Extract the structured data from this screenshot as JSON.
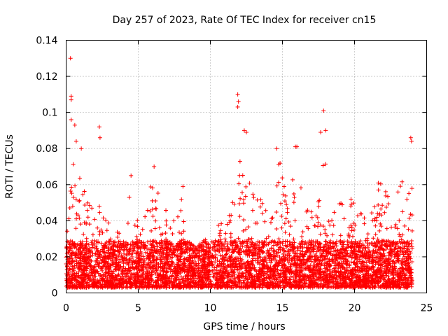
{
  "chart_data": {
    "type": "scatter",
    "title": "Day 257 of 2023, Rate Of TEC Index for receiver cn15",
    "xlabel": "GPS time / hours",
    "ylabel": "ROTI / TECUs",
    "xlim": [
      0,
      25
    ],
    "ylim": [
      0,
      0.14
    ],
    "x_ticks": [
      0,
      5,
      10,
      15,
      20,
      25
    ],
    "y_ticks": [
      0,
      0.02,
      0.04,
      0.06,
      0.08,
      0.1,
      0.12,
      0.14
    ],
    "x_tick_labels": [
      "0",
      "5",
      "10",
      "15",
      "20",
      "25"
    ],
    "y_tick_labels": [
      "0",
      "0.02",
      "0.04",
      "0.06",
      "0.08",
      "0.1",
      "0.12",
      "0.14"
    ],
    "grid": true,
    "marker": "+",
    "color": "#ff0000",
    "series": [
      {
        "name": "ROTI",
        "notable_points": [
          [
            0.3,
            0.13
          ],
          [
            0.35,
            0.109
          ],
          [
            0.35,
            0.107
          ],
          [
            0.35,
            0.096
          ],
          [
            0.6,
            0.093
          ],
          [
            0.7,
            0.084
          ],
          [
            1.05,
            0.08
          ],
          [
            2.3,
            0.092
          ],
          [
            2.35,
            0.086
          ],
          [
            4.5,
            0.065
          ],
          [
            6.1,
            0.07
          ],
          [
            8.1,
            0.059
          ],
          [
            11.9,
            0.11
          ],
          [
            11.95,
            0.106
          ],
          [
            11.9,
            0.103
          ],
          [
            12.35,
            0.09
          ],
          [
            12.5,
            0.089
          ],
          [
            14.6,
            0.08
          ],
          [
            15.9,
            0.081
          ],
          [
            16.0,
            0.081
          ],
          [
            17.85,
            0.101
          ],
          [
            17.65,
            0.089
          ],
          [
            18.0,
            0.09
          ],
          [
            23.9,
            0.086
          ],
          [
            23.95,
            0.084
          ]
        ],
        "envelope": [
          [
            0.0,
            0.03
          ],
          [
            0.5,
            0.075
          ],
          [
            1.0,
            0.07
          ],
          [
            1.5,
            0.05
          ],
          [
            2.0,
            0.045
          ],
          [
            2.5,
            0.05
          ],
          [
            3.0,
            0.04
          ],
          [
            3.5,
            0.035
          ],
          [
            4.0,
            0.04
          ],
          [
            4.5,
            0.06
          ],
          [
            5.0,
            0.04
          ],
          [
            5.5,
            0.045
          ],
          [
            6.0,
            0.065
          ],
          [
            6.5,
            0.055
          ],
          [
            7.0,
            0.045
          ],
          [
            7.5,
            0.04
          ],
          [
            8.0,
            0.055
          ],
          [
            8.5,
            0.03
          ],
          [
            9.0,
            0.025
          ],
          [
            9.5,
            0.03
          ],
          [
            10.0,
            0.035
          ],
          [
            10.5,
            0.04
          ],
          [
            11.0,
            0.045
          ],
          [
            11.5,
            0.05
          ],
          [
            12.0,
            0.085
          ],
          [
            12.5,
            0.08
          ],
          [
            13.0,
            0.06
          ],
          [
            13.5,
            0.06
          ],
          [
            14.0,
            0.06
          ],
          [
            14.5,
            0.075
          ],
          [
            15.0,
            0.075
          ],
          [
            15.5,
            0.06
          ],
          [
            16.0,
            0.075
          ],
          [
            16.5,
            0.055
          ],
          [
            17.0,
            0.05
          ],
          [
            17.5,
            0.055
          ],
          [
            18.0,
            0.08
          ],
          [
            18.5,
            0.05
          ],
          [
            19.0,
            0.05
          ],
          [
            19.5,
            0.055
          ],
          [
            20.0,
            0.05
          ],
          [
            20.5,
            0.045
          ],
          [
            21.0,
            0.04
          ],
          [
            21.5,
            0.065
          ],
          [
            22.0,
            0.06
          ],
          [
            22.5,
            0.05
          ],
          [
            23.0,
            0.06
          ],
          [
            23.5,
            0.07
          ],
          [
            24.0,
            0.085
          ]
        ],
        "x_range": [
          0.0,
          24.0
        ],
        "baseline_min": 0.003
      }
    ]
  }
}
